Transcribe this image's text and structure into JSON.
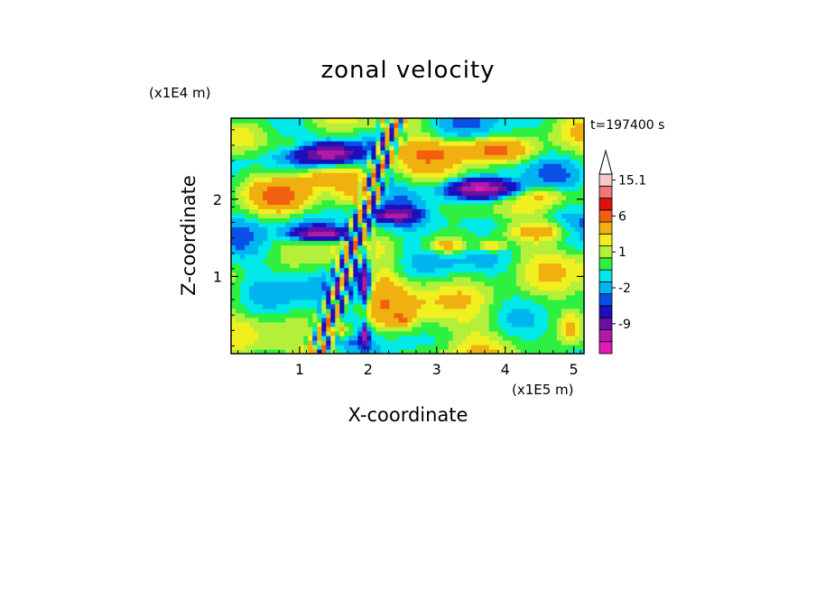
{
  "chart_data": {
    "type": "heatmap",
    "title": "zonal velocity",
    "xlabel": "X-coordinate",
    "ylabel": "Z-coordinate",
    "x_unit": "(x1E5 m)",
    "y_unit": "(x1E4 m)",
    "time_label": "t=197400 s",
    "xlim": [
      0,
      5.15
    ],
    "ylim": [
      0,
      3.05
    ],
    "x_ticks": [
      1,
      2,
      3,
      4,
      5
    ],
    "y_ticks": [
      1,
      2
    ],
    "colorbar": {
      "levels": [
        -15,
        -12,
        -9,
        -6,
        -3,
        -2,
        -1,
        0,
        1,
        2,
        3,
        6,
        9,
        12,
        15.1
      ],
      "labels": [
        "15.1",
        "6",
        "1",
        "-2",
        "-9"
      ],
      "label_values": [
        15.1,
        6,
        1,
        -2,
        -9
      ],
      "colors": [
        "#e21bb4",
        "#b01aa6",
        "#6a0fa0",
        "#1a10c0",
        "#0a50e8",
        "#00b4f0",
        "#00e8e8",
        "#2ef040",
        "#b4f03a",
        "#f0f020",
        "#f0b010",
        "#f06010",
        "#e01010",
        "#f07878",
        "#f8c8c8"
      ],
      "extend_top": true
    },
    "field": {
      "background_value": 0.5,
      "features": [
        {
          "x": 0.35,
          "z": 2.5,
          "rx": 0.5,
          "rz": 0.18,
          "value": -1.5
        },
        {
          "x": 1.0,
          "z": 2.7,
          "rx": 0.3,
          "rz": 0.12,
          "value": 2.5
        },
        {
          "x": 1.45,
          "z": 2.6,
          "rx": 0.4,
          "rz": 0.12,
          "value": -10
        },
        {
          "x": 1.45,
          "z": 2.3,
          "rx": 0.55,
          "rz": 0.15,
          "value": 4
        },
        {
          "x": 0.75,
          "z": 2.05,
          "rx": 0.35,
          "rz": 0.15,
          "value": 5
        },
        {
          "x": 1.95,
          "z": 2.05,
          "rx": 0.35,
          "rz": 0.15,
          "value": 4
        },
        {
          "x": 2.15,
          "z": 2.75,
          "rx": 0.25,
          "rz": 0.15,
          "value": -1.5
        },
        {
          "x": 2.2,
          "z": 2.15,
          "rx": 0.3,
          "rz": 0.2,
          "value": -1.5
        },
        {
          "x": 1.15,
          "z": 1.65,
          "rx": 0.55,
          "rz": 0.12,
          "value": -2.5
        },
        {
          "x": 1.35,
          "z": 1.55,
          "rx": 0.4,
          "rz": 0.08,
          "value": -11
        },
        {
          "x": 2.4,
          "z": 1.8,
          "rx": 0.3,
          "rz": 0.08,
          "value": -9
        },
        {
          "x": 2.85,
          "z": 2.6,
          "rx": 0.45,
          "rz": 0.15,
          "value": 4
        },
        {
          "x": 3.85,
          "z": 2.65,
          "rx": 0.5,
          "rz": 0.14,
          "value": 6
        },
        {
          "x": 3.55,
          "z": 2.1,
          "rx": 0.6,
          "rz": 0.18,
          "value": -2.5
        },
        {
          "x": 3.65,
          "z": 2.15,
          "rx": 0.45,
          "rz": 0.1,
          "value": -10
        },
        {
          "x": 4.6,
          "z": 2.05,
          "rx": 0.4,
          "rz": 0.13,
          "value": 3
        },
        {
          "x": 3.9,
          "z": 1.7,
          "rx": 1.2,
          "rz": 0.15,
          "value": -2.5
        },
        {
          "x": 4.55,
          "z": 1.6,
          "rx": 0.45,
          "rz": 0.12,
          "value": 4
        },
        {
          "x": 3.15,
          "z": 1.4,
          "rx": 0.3,
          "rz": 0.1,
          "value": 4
        },
        {
          "x": 3.8,
          "z": 1.4,
          "rx": 0.2,
          "rz": 0.08,
          "value": 4
        },
        {
          "x": 1.85,
          "z": 1.15,
          "rx": 0.25,
          "rz": 0.45,
          "value": -3
        },
        {
          "x": 1.95,
          "z": 0.9,
          "rx": 0.06,
          "rz": 0.25,
          "value": -10
        },
        {
          "x": 1.95,
          "z": 0.25,
          "rx": 0.05,
          "rz": 0.12,
          "value": -10
        },
        {
          "x": 2.2,
          "z": 0.65,
          "rx": 0.25,
          "rz": 0.45,
          "value": 3
        },
        {
          "x": 2.5,
          "z": 0.45,
          "rx": 0.15,
          "rz": 0.1,
          "value": 4
        },
        {
          "x": 1.6,
          "z": 0.3,
          "rx": 0.2,
          "rz": 0.1,
          "value": 4
        },
        {
          "x": 0.6,
          "z": 0.45,
          "rx": 0.7,
          "rz": 0.45,
          "value": -0.5
        },
        {
          "x": 3.7,
          "z": 0.6,
          "rx": 1.0,
          "rz": 0.35,
          "value": 2
        },
        {
          "x": 4.2,
          "z": 0.3,
          "rx": 0.8,
          "rz": 0.2,
          "value": -0.5
        },
        {
          "x": 3.05,
          "z": 0.15,
          "rx": 0.8,
          "rz": 0.15,
          "value": -0.5
        },
        {
          "x": 1.3,
          "z": 0.05,
          "rx": 0.5,
          "rz": 0.08,
          "value": 2
        },
        {
          "x": 4.95,
          "z": 0.35,
          "rx": 0.15,
          "rz": 0.2,
          "value": 2.5
        }
      ]
    }
  }
}
